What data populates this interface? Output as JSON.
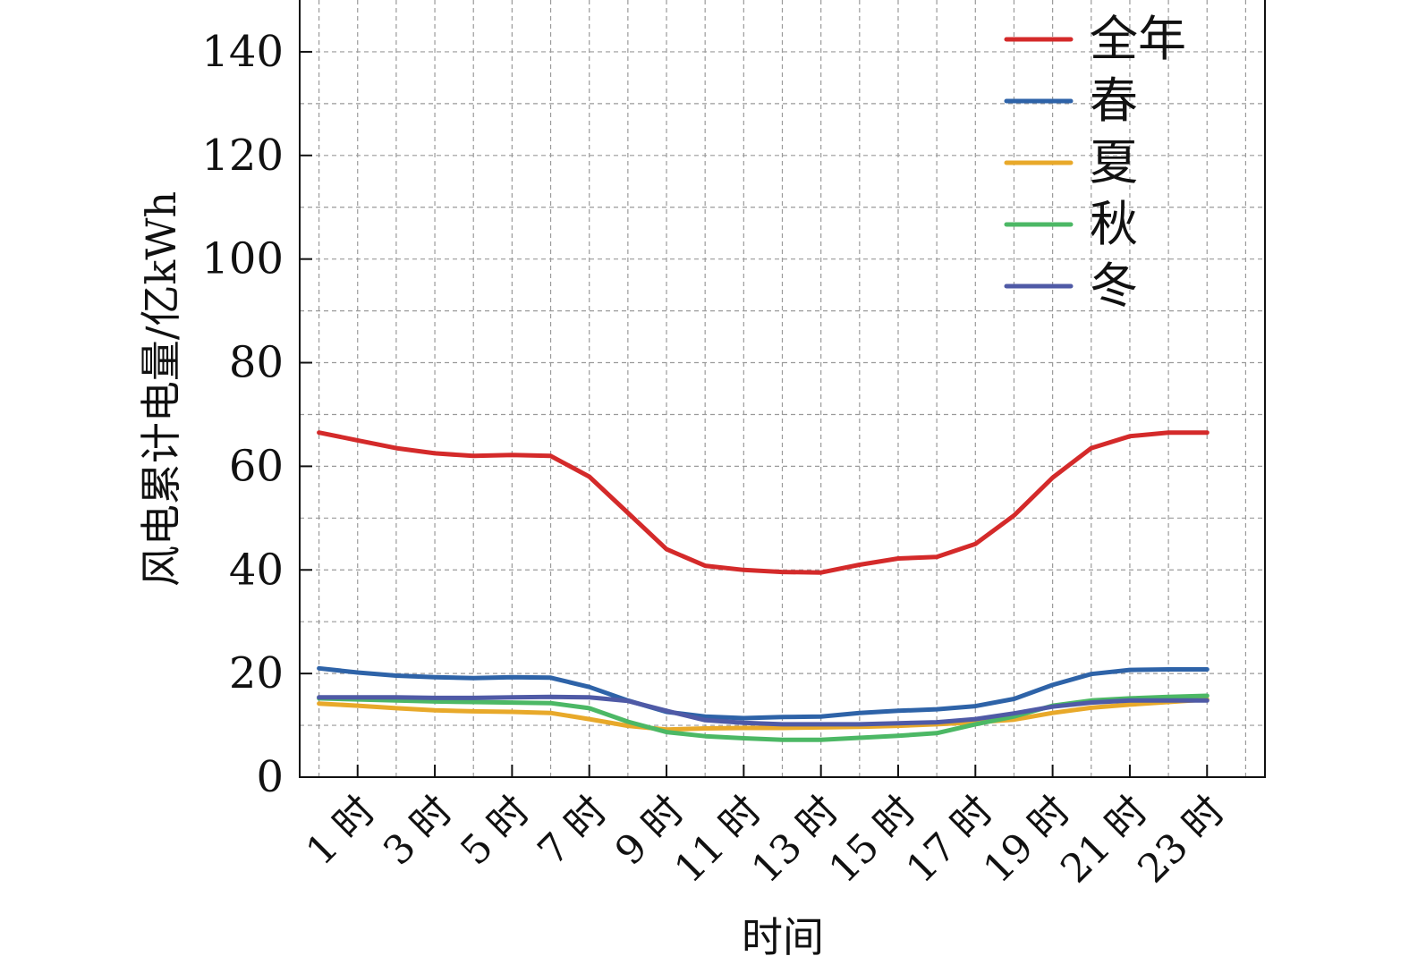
{
  "chart_data": {
    "type": "line",
    "title": "",
    "xlabel": "时间",
    "ylabel": "风电累计电量/亿kWh",
    "ylim": [
      0,
      150
    ],
    "yticks": [
      0,
      20,
      40,
      60,
      80,
      100,
      120,
      140
    ],
    "grid": true,
    "legend_position": "top-right",
    "x": [
      0,
      1,
      2,
      3,
      4,
      5,
      6,
      7,
      8,
      9,
      10,
      11,
      12,
      13,
      14,
      15,
      16,
      17,
      18,
      19,
      20,
      21,
      22,
      23
    ],
    "xlim": [
      -0.5,
      24.5
    ],
    "xticks": [
      1,
      3,
      5,
      7,
      9,
      11,
      13,
      15,
      17,
      19,
      21,
      23
    ],
    "xtick_labels": [
      "1 时",
      "3 时",
      "5 时",
      "7 时",
      "9 时",
      "11 时",
      "13 时",
      "15 时",
      "17 时",
      "19 时",
      "21 时",
      "23 时"
    ],
    "series": [
      {
        "name": "全年",
        "color": "#d42a2a",
        "values": [
          66.5,
          65,
          63.5,
          62.5,
          62,
          62.2,
          62,
          58,
          51,
          44,
          40.8,
          40,
          39.6,
          39.5,
          41,
          42.2,
          42.5,
          45,
          50.5,
          57.8,
          63.5,
          65.8,
          66.5,
          66.5
        ]
      },
      {
        "name": "春",
        "color": "#2e63a8",
        "values": [
          21,
          20.2,
          19.6,
          19.3,
          19.1,
          19.3,
          19.2,
          17.4,
          14.8,
          12.6,
          11.7,
          11.4,
          11.6,
          11.7,
          12.4,
          12.8,
          13.1,
          13.7,
          15.1,
          17.8,
          19.9,
          20.7,
          20.8,
          20.8
        ]
      },
      {
        "name": "夏",
        "color": "#e8a92a",
        "values": [
          14.2,
          13.8,
          13.3,
          12.9,
          12.7,
          12.6,
          12.4,
          11.2,
          9.9,
          9.2,
          9.4,
          9.5,
          9.5,
          9.6,
          9.7,
          9.9,
          10.2,
          10.6,
          11.1,
          12.4,
          13.4,
          14,
          14.5,
          15
        ]
      },
      {
        "name": "秋",
        "color": "#4cb865",
        "values": [
          15.2,
          15,
          14.8,
          14.6,
          14.5,
          14.4,
          14.3,
          13.3,
          10.7,
          8.7,
          7.9,
          7.5,
          7.2,
          7.2,
          7.6,
          8,
          8.5,
          10.2,
          11.7,
          13.8,
          14.8,
          15.2,
          15.5,
          15.7
        ]
      },
      {
        "name": "冬",
        "color": "#4f5aa6",
        "values": [
          15.4,
          15.4,
          15.4,
          15.3,
          15.3,
          15.4,
          15.5,
          15.4,
          14.7,
          12.8,
          11,
          10.5,
          10.2,
          10.2,
          10.2,
          10.4,
          10.6,
          11.2,
          12.3,
          13.6,
          14.4,
          14.8,
          14.8,
          14.8
        ]
      }
    ]
  }
}
